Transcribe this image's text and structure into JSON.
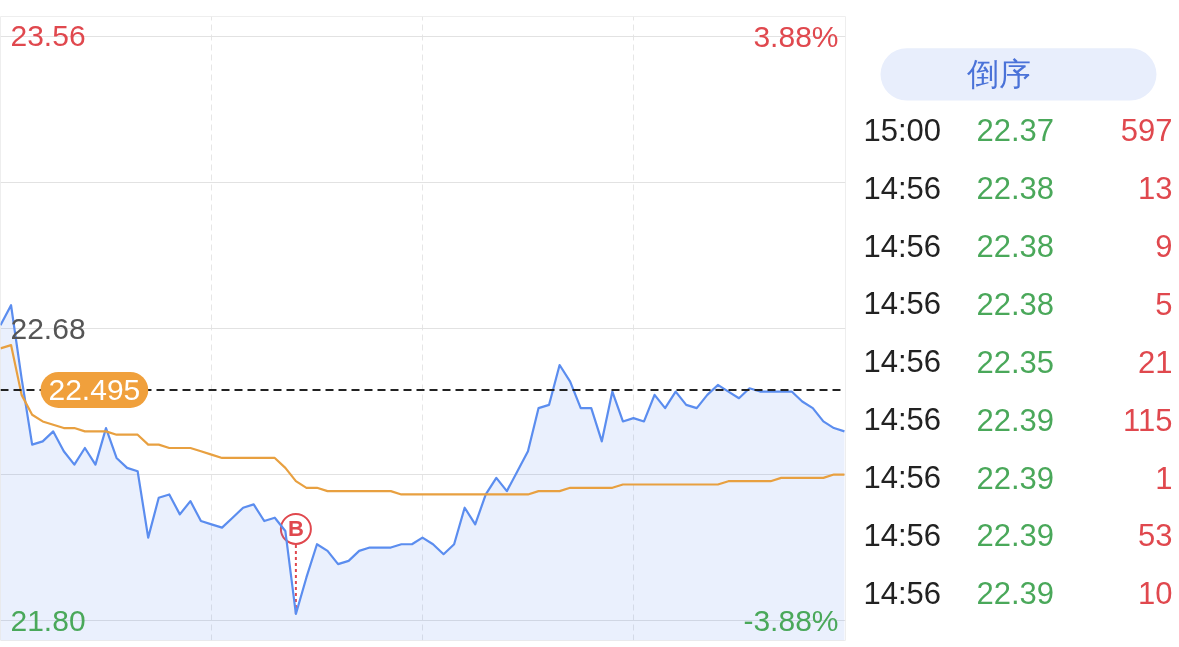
{
  "chart_data": [
    {
      "type": "line",
      "categories": [
        null,
        null,
        null,
        null,
        null,
        null,
        null,
        null,
        null,
        null,
        null,
        null,
        null,
        null,
        null,
        null,
        null,
        null,
        null,
        null,
        null,
        null,
        null,
        null,
        null,
        null,
        null,
        null,
        null,
        null,
        null,
        null,
        null,
        null,
        null,
        null,
        null,
        null,
        null,
        null,
        null,
        null,
        null,
        null,
        null,
        null,
        null,
        null,
        null,
        null,
        null,
        null,
        null,
        null,
        null,
        null,
        null,
        null,
        null,
        null,
        null,
        null,
        null,
        null,
        null,
        null,
        null,
        null,
        null,
        null,
        null,
        null,
        null,
        null,
        null,
        null,
        null,
        null,
        null,
        null,
        null
      ],
      "series": [
        {
          "type": "area",
          "color": "#5b8def",
          "values": [
            22.69,
            22.75,
            22.53,
            22.33,
            22.34,
            22.37,
            22.31,
            22.27,
            22.32,
            22.27,
            22.38,
            22.29,
            22.26,
            22.25,
            22.05,
            22.17,
            22.18,
            22.12,
            22.16,
            22.1,
            22.09,
            22.08,
            22.11,
            22.14,
            22.15,
            22.1,
            22.11,
            22.07,
            21.82,
            21.93,
            22.03,
            22.01,
            21.97,
            21.98,
            22.01,
            22.02,
            22.02,
            22.02,
            22.03,
            22.03,
            22.05,
            22.03,
            22.0,
            22.03,
            22.14,
            22.09,
            22.18,
            22.23,
            22.19,
            22.25,
            22.31,
            22.44,
            22.45,
            22.57,
            22.52,
            22.44,
            22.44,
            22.34,
            22.49,
            22.4,
            22.41,
            22.4,
            22.48,
            22.44,
            22.49,
            22.45,
            22.44,
            22.48,
            22.51,
            22.49,
            22.47,
            22.5,
            22.49,
            22.49,
            22.49,
            22.49,
            22.46,
            22.44,
            22.4,
            22.38,
            22.37
          ]
        },
        {
          "type": "line",
          "color": "#e8a040",
          "values": [
            22.62,
            22.63,
            22.48,
            22.42,
            22.4,
            22.39,
            22.38,
            22.38,
            22.37,
            22.37,
            22.37,
            22.36,
            22.36,
            22.36,
            22.33,
            22.33,
            22.32,
            22.32,
            22.32,
            22.31,
            22.3,
            22.29,
            22.29,
            22.29,
            22.29,
            22.29,
            22.29,
            22.26,
            22.22,
            22.2,
            22.2,
            22.19,
            22.19,
            22.19,
            22.19,
            22.19,
            22.19,
            22.19,
            22.18,
            22.18,
            22.18,
            22.18,
            22.18,
            22.18,
            22.18,
            22.18,
            22.18,
            22.18,
            22.18,
            22.18,
            22.18,
            22.19,
            22.19,
            22.19,
            22.2,
            22.2,
            22.2,
            22.2,
            22.2,
            22.21,
            22.21,
            22.21,
            22.21,
            22.21,
            22.21,
            22.21,
            22.21,
            22.21,
            22.21,
            22.22,
            22.22,
            22.22,
            22.22,
            22.22,
            22.23,
            22.23,
            22.23,
            22.23,
            22.23,
            22.24,
            22.24
          ]
        }
      ],
      "ylim": [
        21.74,
        23.62
      ],
      "yticks": [
        {
          "value": 21.8,
          "label": "21.80"
        },
        {
          "value": 22.24,
          "label": null
        },
        22.68,
        {
          "value": 23.12,
          "label": null
        },
        23.56
      ],
      "y2lim": [
        -4.14,
        4.14
      ],
      "y2ticks": [
        {
          "value": -3.88,
          "label": "-3.88%"
        },
        {
          "value": 3.88,
          "label": "3.88%"
        }
      ],
      "ref_lines": [
        {
          "axis": "y",
          "value": 22.495,
          "label": "22.495",
          "color": "#222222",
          "line_style": "dashed"
        }
      ],
      "annotations": [
        {
          "text": "B",
          "y": 21.82
        }
      ],
      "grid": true,
      "tick_labels": "y"
    },
    {
      "type": "other",
      "title": "倒序",
      "annotations": [
        "15:00",
        "22.37",
        "597",
        "14:56",
        "22.38",
        "13",
        "14:56",
        "22.38",
        "9",
        "14:56",
        "22.38",
        "5",
        "14:56",
        "22.35",
        "21",
        "14:56",
        "22.39",
        "115",
        "14:56",
        "22.39",
        "1",
        "14:56",
        "22.39",
        "53",
        "14:56",
        "22.39",
        "10"
      ]
    }
  ]
}
